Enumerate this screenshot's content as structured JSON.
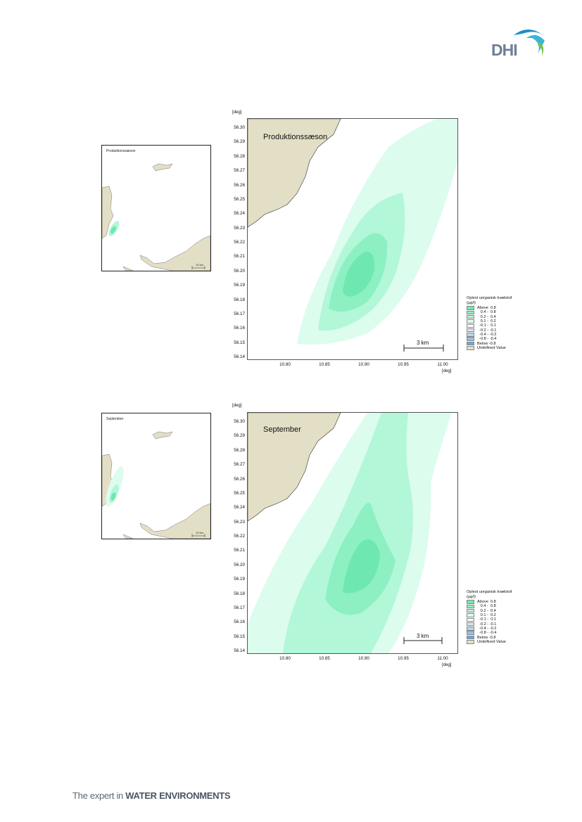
{
  "header": {
    "logo_text": "DHI",
    "logo_colors": {
      "text": "#6e7f97",
      "wave1": "#1e8fc6",
      "wave2": "#3cb4d7",
      "wave3": "#7ac143"
    }
  },
  "footer": {
    "text_prefix": "The expert in ",
    "text_bold": "WATER ENVIRONMENTS"
  },
  "colors": {
    "land": "#e3dfc6",
    "c_above_08": "#6ee8b0",
    "c_04_08": "#8cf0c2",
    "c_02_04": "#b2f7d8",
    "c_01_02": "#dcfcee",
    "c_m01_01": "#ffffff",
    "c_m02_m01": "#dde8f4",
    "c_m04_m02": "#bcd4ec",
    "c_m08_m04": "#98bde4",
    "c_below_m08": "#6ea7dd",
    "undefined": "#e3dfc6"
  },
  "panels": [
    {
      "id": "production",
      "overview_label": "Produktionssæson",
      "overview_scale": "10 km",
      "map_label": "Produktionssæson",
      "scale_label": "3 km"
    },
    {
      "id": "september",
      "overview_label": "September",
      "overview_scale": "10 km",
      "map_label": "September",
      "scale_label": "3 km"
    }
  ],
  "axes": {
    "y_unit": "[deg]",
    "x_unit": "[deg]",
    "y_ticks": [
      "56.30",
      "56.29",
      "56.28",
      "56.27",
      "56.26",
      "56.25",
      "56.24",
      "56.23",
      "56.22",
      "56.21",
      "56.20",
      "56.19",
      "56.18",
      "56.17",
      "56.16",
      "56.15",
      "56.14"
    ],
    "x_ticks": [
      "10.80",
      "10.85",
      "10.90",
      "10.95",
      "11.00"
    ]
  },
  "legend": {
    "title_line1": "Oplest uorganisk kvælstof",
    "title_line2": "(µg/l)",
    "items": [
      {
        "label": "Above  0.8",
        "color": "#6ee8b0"
      },
      {
        "label": "   0.4 -  0.8",
        "color": "#8cf0c2"
      },
      {
        "label": "   0.2 -  0.4",
        "color": "#b2f7d8"
      },
      {
        "label": "   0.1 -  0.2",
        "color": "#dcfcee"
      },
      {
        "label": "  -0.1 -  0.1",
        "color": "#ffffff"
      },
      {
        "label": "  -0.2 - -0.1",
        "color": "#dde8f4"
      },
      {
        "label": "  -0.4 - -0.2",
        "color": "#bcd4ec"
      },
      {
        "label": "  -0.8 - -0.4",
        "color": "#98bde4"
      },
      {
        "label": "Below -0.8",
        "color": "#6ea7dd"
      },
      {
        "label": "Undefined Value",
        "color": "#e3dfc6"
      }
    ]
  }
}
